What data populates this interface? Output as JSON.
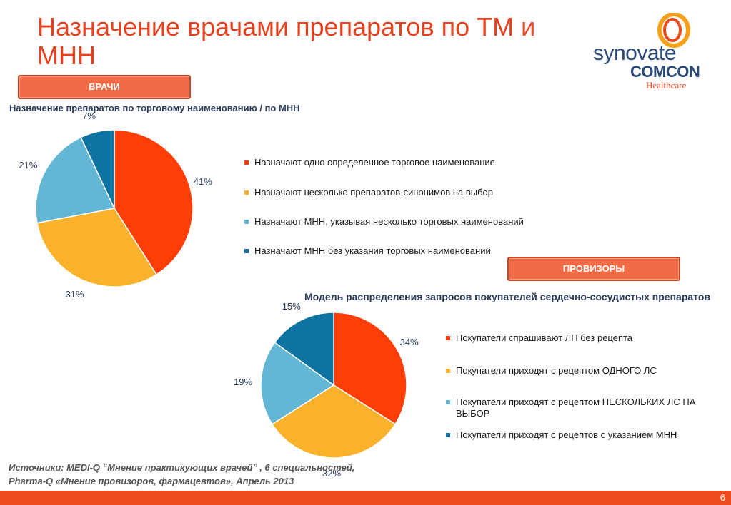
{
  "title": "Назначение врачами препаратов по ТМ  и МНН",
  "logo": {
    "brand": "synovate",
    "sub": "COMCON",
    "tag": "Healthcare"
  },
  "buttons": {
    "doctors": "ВРАЧИ",
    "pharmacists": "ПРОВИЗОРЫ"
  },
  "colors": {
    "red": "#ff3d06",
    "yellow": "#fab12c",
    "lightblue": "#64b7d4",
    "blue": "#0e73a0",
    "accent": "#ef6a45"
  },
  "chart_data": [
    {
      "type": "pie",
      "title": "Назначение препаратов по торговому наименованию / по МНН",
      "categories": [
        "Назначают одно определенное торговое наименование",
        "Назначают несколько препаратов-синонимов на выбор",
        "Назначают МНН, указывая несколько торговых наименований",
        "Назначают МНН без указания торговых наименований"
      ],
      "values": [
        41,
        31,
        21,
        7
      ],
      "labels": [
        "41%",
        "31%",
        "21%",
        "7%"
      ],
      "colors": [
        "#ff3d06",
        "#fab12c",
        "#64b7d4",
        "#0e73a0"
      ],
      "legend": "right"
    },
    {
      "type": "pie",
      "title": "Модель распределения запросов покупателей сердечно-сосудистых препаратов",
      "categories": [
        "Покупатели спрашивают ЛП  без рецепта",
        "Покупатели приходят с рецептом ОДНОГО ЛС",
        "Покупатели приходят с рецептом НЕСКОЛЬКИХ ЛС НА ВЫБОР",
        "Покупатели приходят с рецептов с указанием МНН"
      ],
      "values": [
        34,
        32,
        19,
        15
      ],
      "labels": [
        "34%",
        "32%",
        "19%",
        "15%"
      ],
      "colors": [
        "#ff3d06",
        "#fab12c",
        "#64b7d4",
        "#0e73a0"
      ],
      "legend": "right"
    }
  ],
  "source": {
    "line1": "Источники: MEDI-Q “Мнение практикующих врачей’’ , 6 специальностей,",
    "line2": " Pharma-Q «Мнение провизоров, фармацевтов», Апрель 2013"
  },
  "page_number": "6"
}
